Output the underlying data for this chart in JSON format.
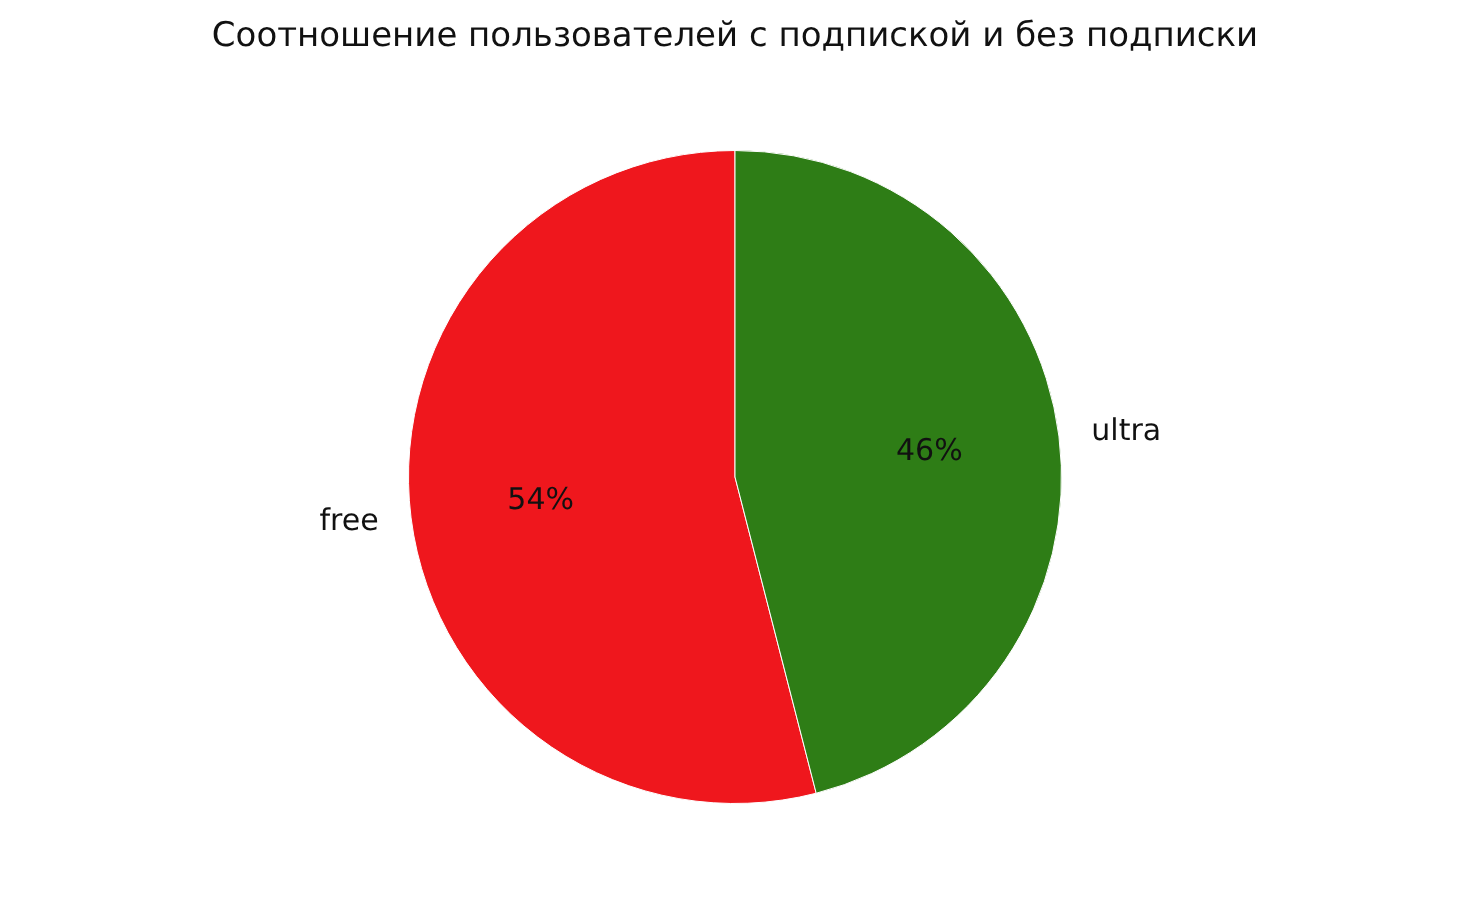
{
  "chart_data": {
    "type": "pie",
    "title": "Соотношение пользователей с подпиской и без подписки",
    "categories": [
      "free",
      "ultra"
    ],
    "values": [
      54,
      46
    ],
    "colors": [
      "#ef171d",
      "#2e7d16"
    ],
    "value_labels": [
      "54%",
      "46%"
    ],
    "legend": false
  }
}
